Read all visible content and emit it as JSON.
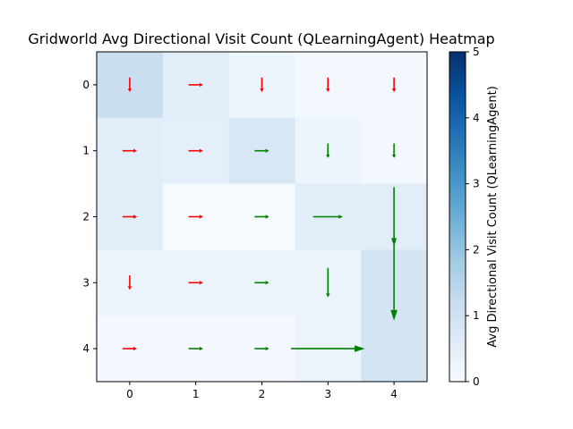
{
  "chart_data": {
    "type": "heatmap",
    "title": "Gridworld Avg Directional Visit Count (QLearningAgent) Heatmap",
    "x_ticks": [
      "0",
      "1",
      "2",
      "3",
      "4"
    ],
    "y_ticks": [
      "0",
      "1",
      "2",
      "3",
      "4"
    ],
    "xlim": [
      -0.5,
      4.5
    ],
    "ylim": [
      4.5,
      -0.5
    ],
    "colormap": "Blues",
    "colorbar": {
      "label": "Avg Directional Visit Count (QLearningAgent)",
      "range": [
        0,
        5
      ],
      "ticks": [
        "0",
        "1",
        "2",
        "3",
        "4",
        "5"
      ]
    },
    "values": [
      [
        1.15,
        0.55,
        0.3,
        0.1,
        0.1
      ],
      [
        0.55,
        0.45,
        0.8,
        0.25,
        0.1
      ],
      [
        0.55,
        0.05,
        0.05,
        0.55,
        0.55
      ],
      [
        0.3,
        0.3,
        0.3,
        0.3,
        0.9
      ],
      [
        0.1,
        0.1,
        0.1,
        0.3,
        0.9
      ]
    ],
    "arrow_colors": {
      "red": "#ff0000",
      "green": "#008000"
    },
    "arrows": [
      {
        "row": 0,
        "col": 0,
        "dir": "down",
        "length": 0.22,
        "color": "red"
      },
      {
        "row": 0,
        "col": 1,
        "dir": "right",
        "length": 0.22,
        "color": "red"
      },
      {
        "row": 0,
        "col": 2,
        "dir": "down",
        "length": 0.22,
        "color": "red"
      },
      {
        "row": 0,
        "col": 3,
        "dir": "down",
        "length": 0.22,
        "color": "red"
      },
      {
        "row": 0,
        "col": 4,
        "dir": "down",
        "length": 0.22,
        "color": "red"
      },
      {
        "row": 1,
        "col": 0,
        "dir": "right",
        "length": 0.22,
        "color": "red"
      },
      {
        "row": 1,
        "col": 1,
        "dir": "right",
        "length": 0.22,
        "color": "red"
      },
      {
        "row": 1,
        "col": 2,
        "dir": "right",
        "length": 0.22,
        "color": "green"
      },
      {
        "row": 1,
        "col": 3,
        "dir": "down",
        "length": 0.22,
        "color": "green"
      },
      {
        "row": 1,
        "col": 4,
        "dir": "down",
        "length": 0.22,
        "color": "green"
      },
      {
        "row": 2,
        "col": 0,
        "dir": "right",
        "length": 0.22,
        "color": "red"
      },
      {
        "row": 2,
        "col": 1,
        "dir": "right",
        "length": 0.22,
        "color": "red"
      },
      {
        "row": 2,
        "col": 2,
        "dir": "right",
        "length": 0.22,
        "color": "green"
      },
      {
        "row": 2,
        "col": 3,
        "dir": "right",
        "length": 0.45,
        "color": "green"
      },
      {
        "row": 2,
        "col": 4,
        "dir": "down",
        "length": 0.9,
        "color": "green"
      },
      {
        "row": 3,
        "col": 0,
        "dir": "down",
        "length": 0.22,
        "color": "red"
      },
      {
        "row": 3,
        "col": 1,
        "dir": "right",
        "length": 0.22,
        "color": "red"
      },
      {
        "row": 3,
        "col": 2,
        "dir": "right",
        "length": 0.22,
        "color": "green"
      },
      {
        "row": 3,
        "col": 3,
        "dir": "down",
        "length": 0.45,
        "color": "green"
      },
      {
        "row": 3,
        "col": 4,
        "dir": "down",
        "length": 1.15,
        "color": "green"
      },
      {
        "row": 4,
        "col": 0,
        "dir": "right",
        "length": 0.22,
        "color": "red"
      },
      {
        "row": 4,
        "col": 1,
        "dir": "right",
        "length": 0.22,
        "color": "green"
      },
      {
        "row": 4,
        "col": 2,
        "dir": "right",
        "length": 0.22,
        "color": "green"
      },
      {
        "row": 4,
        "col": 3,
        "dir": "right",
        "length": 1.12,
        "color": "green"
      }
    ]
  }
}
